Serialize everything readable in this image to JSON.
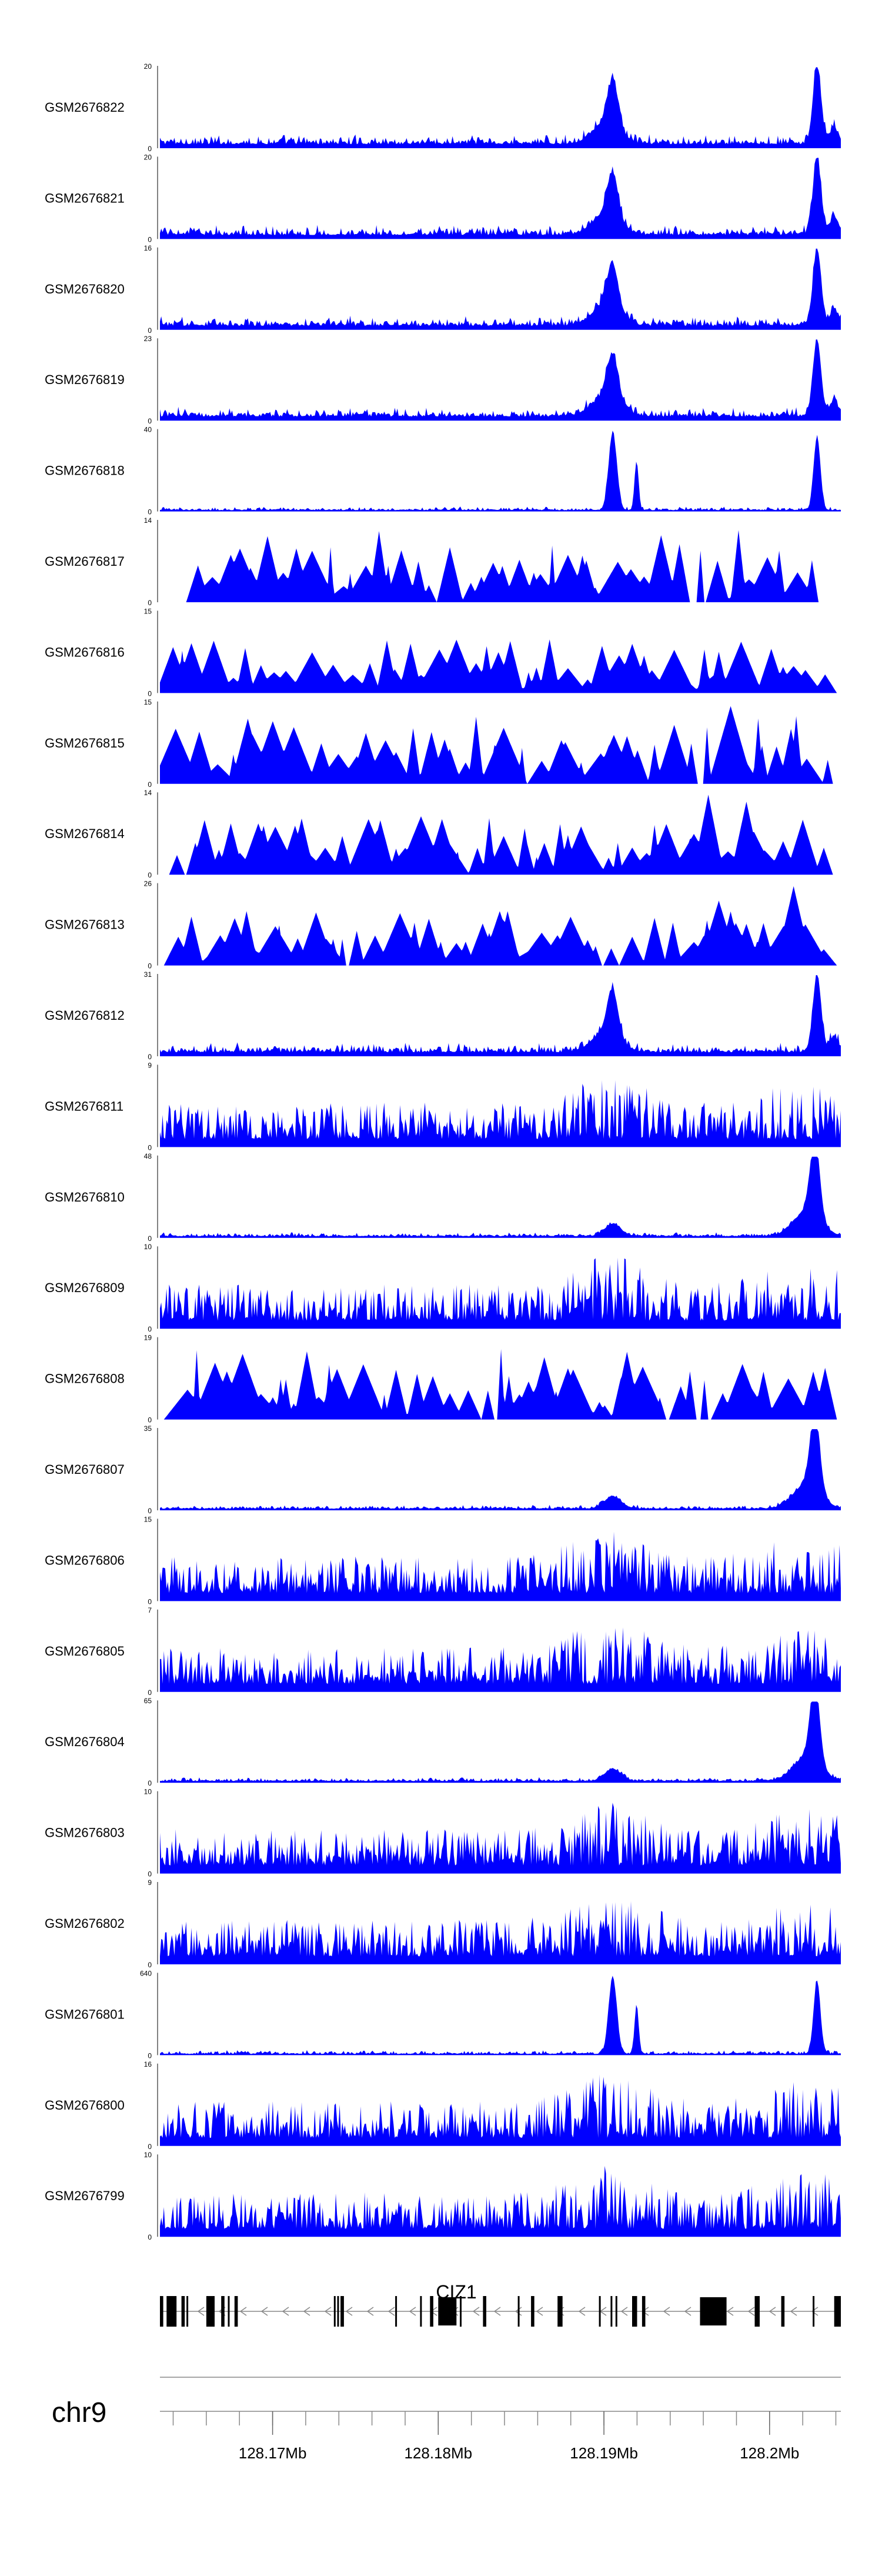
{
  "chart_data": {
    "type": "area",
    "title": "",
    "xlabel": "",
    "chromosome": "chr9",
    "xlim": [
      128.1632,
      128.2043
    ],
    "x_ticks": [
      128.17,
      128.18,
      128.19,
      128.2
    ],
    "x_tick_labels": [
      "128.17Mb",
      "128.18Mb",
      "128.19Mb",
      "128.2Mb"
    ],
    "gene": "CIZ1",
    "tracks": [
      {
        "name": "GSM2676822",
        "ymax": 20,
        "ytick_top": "20",
        "ytick_bottom": "0",
        "profile": "a"
      },
      {
        "name": "GSM2676821",
        "ymax": 20,
        "ytick_top": "20",
        "ytick_bottom": "0",
        "profile": "a"
      },
      {
        "name": "GSM2676820",
        "ymax": 16,
        "ytick_top": "16",
        "ytick_bottom": "0",
        "profile": "a"
      },
      {
        "name": "GSM2676819",
        "ymax": 23,
        "ytick_top": "23",
        "ytick_bottom": "0",
        "profile": "a"
      },
      {
        "name": "GSM2676818",
        "ymax": 40,
        "ytick_top": "40",
        "ytick_bottom": "0",
        "profile": "b"
      },
      {
        "name": "GSM2676817",
        "ymax": 14,
        "ytick_top": "14",
        "ytick_bottom": "0",
        "profile": "s"
      },
      {
        "name": "GSM2676816",
        "ymax": 15,
        "ytick_top": "15",
        "ytick_bottom": "0",
        "profile": "s"
      },
      {
        "name": "GSM2676815",
        "ymax": 15,
        "ytick_top": "15",
        "ytick_bottom": "0",
        "profile": "s"
      },
      {
        "name": "GSM2676814",
        "ymax": 14,
        "ytick_top": "14",
        "ytick_bottom": "0",
        "profile": "s"
      },
      {
        "name": "GSM2676813",
        "ymax": 26,
        "ytick_top": "26",
        "ytick_bottom": "0",
        "profile": "s"
      },
      {
        "name": "GSM2676812",
        "ymax": 31,
        "ytick_top": "31",
        "ytick_bottom": "0",
        "profile": "a"
      },
      {
        "name": "GSM2676811",
        "ymax": 9,
        "ytick_top": "9",
        "ytick_bottom": "0",
        "profile": "d"
      },
      {
        "name": "GSM2676810",
        "ymax": 48,
        "ytick_top": "48",
        "ytick_bottom": "0",
        "profile": "c"
      },
      {
        "name": "GSM2676809",
        "ymax": 10,
        "ytick_top": "10",
        "ytick_bottom": "0",
        "profile": "d"
      },
      {
        "name": "GSM2676808",
        "ymax": 19,
        "ytick_top": "19",
        "ytick_bottom": "0",
        "profile": "s"
      },
      {
        "name": "GSM2676807",
        "ymax": 35,
        "ytick_top": "35",
        "ytick_bottom": "0",
        "profile": "c"
      },
      {
        "name": "GSM2676806",
        "ymax": 15,
        "ytick_top": "15",
        "ytick_bottom": "0",
        "profile": "d"
      },
      {
        "name": "GSM2676805",
        "ymax": 7,
        "ytick_top": "7",
        "ytick_bottom": "0",
        "profile": "d"
      },
      {
        "name": "GSM2676804",
        "ymax": 65,
        "ytick_top": "65",
        "ytick_bottom": "0",
        "profile": "c"
      },
      {
        "name": "GSM2676803",
        "ymax": 10,
        "ytick_top": "10",
        "ytick_bottom": "0",
        "profile": "d"
      },
      {
        "name": "GSM2676802",
        "ymax": 9,
        "ytick_top": "9",
        "ytick_bottom": "0",
        "profile": "d"
      },
      {
        "name": "GSM2676801",
        "ymax": 640,
        "ytick_top": "640",
        "ytick_bottom": "0",
        "profile": "b"
      },
      {
        "name": "GSM2676800",
        "ymax": 16,
        "ytick_top": "16",
        "ytick_bottom": "0",
        "profile": "d"
      },
      {
        "name": "GSM2676799",
        "ymax": 10,
        "ytick_top": "10",
        "ytick_bottom": "0",
        "profile": "d"
      }
    ],
    "exons_mb": [
      [
        128.1632,
        128.1634
      ],
      [
        128.1636,
        128.1642
      ],
      [
        128.1645,
        128.1647
      ],
      [
        128.1648,
        128.1649
      ],
      [
        128.166,
        128.1665
      ],
      [
        128.1669,
        128.1671
      ],
      [
        128.1673,
        128.1674
      ],
      [
        128.1677,
        128.1679
      ],
      [
        128.1737,
        128.1738
      ],
      [
        128.1739,
        128.174
      ],
      [
        128.1741,
        128.1742
      ],
      [
        128.1742,
        128.1743
      ],
      [
        128.1774,
        128.1775
      ],
      [
        128.1789,
        128.179
      ],
      [
        128.1795,
        128.1797
      ],
      [
        128.18,
        128.1811
      ],
      [
        128.1813,
        128.1814
      ],
      [
        128.1827,
        128.1829
      ],
      [
        128.1848,
        128.1849
      ],
      [
        128.1856,
        128.1858
      ],
      [
        128.1872,
        128.1875
      ],
      [
        128.1897,
        128.1898
      ],
      [
        128.1904,
        128.1905
      ],
      [
        128.1907,
        128.1908
      ],
      [
        128.1917,
        128.192
      ],
      [
        128.1923,
        128.1925
      ],
      [
        128.1958,
        128.1974
      ],
      [
        128.1991,
        128.1994
      ],
      [
        128.2007,
        128.2009
      ],
      [
        128.2026,
        128.2027
      ],
      [
        128.2039,
        128.2043
      ]
    ]
  }
}
